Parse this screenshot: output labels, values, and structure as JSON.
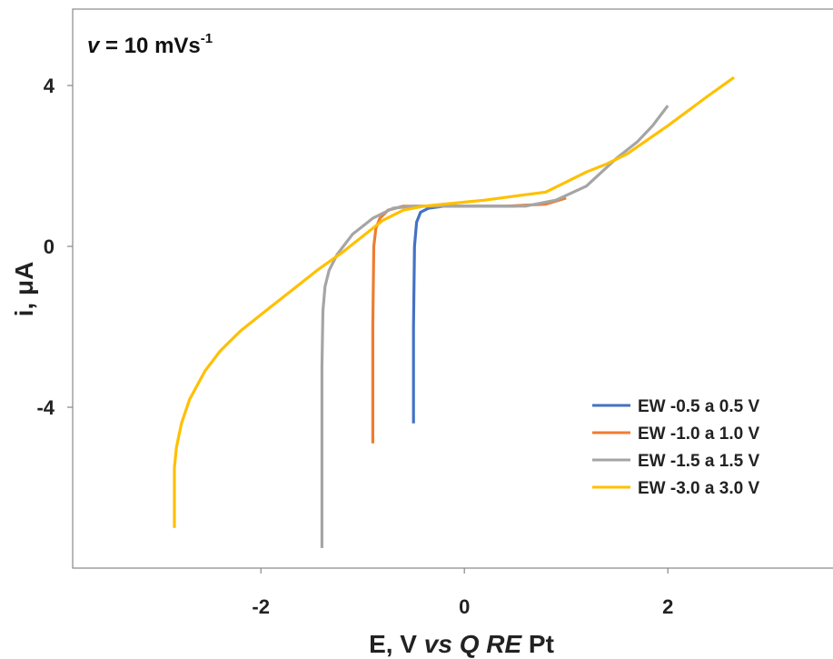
{
  "chart_data": {
    "type": "line",
    "annotation": {
      "prefix": "v",
      "middle": " = 10 mVs",
      "superscript": "-1"
    },
    "xlabel": {
      "prefix": "E, V ",
      "italic": "vs Q RE",
      "suffix": " Pt"
    },
    "ylabel": "i, μA",
    "xlim": [
      -3.85,
      3.65
    ],
    "ylim": [
      -8.0,
      5.9
    ],
    "x_ticks": [
      -2,
      0,
      2
    ],
    "x_tick_labels": [
      "-2",
      "0",
      "2"
    ],
    "y_ticks": [
      4,
      0,
      -4
    ],
    "y_tick_labels": [
      "4",
      "0",
      "-4"
    ],
    "grid": false,
    "legend_position": "bottom-right",
    "series": [
      {
        "name": "EW -0.5 a 0.5 V",
        "color": "#4472c4",
        "x": [
          -0.5,
          -0.5,
          -0.49,
          -0.47,
          -0.43,
          -0.35,
          -0.2,
          0.0,
          0.2,
          0.4,
          0.5
        ],
        "y": [
          -4.4,
          -2.0,
          0.0,
          0.6,
          0.85,
          0.95,
          1.0,
          1.0,
          1.0,
          1.0,
          1.0
        ]
      },
      {
        "name": "EW -1.0 a 1.0 V",
        "color": "#ed7d31",
        "x": [
          -0.9,
          -0.9,
          -0.89,
          -0.87,
          -0.83,
          -0.75,
          -0.6,
          -0.4,
          0.0,
          0.4,
          0.8,
          1.0
        ],
        "y": [
          -4.9,
          -2.0,
          0.0,
          0.45,
          0.7,
          0.9,
          1.0,
          1.0,
          1.0,
          1.0,
          1.05,
          1.2
        ]
      },
      {
        "name": "EW -1.5 a 1.5 V",
        "color": "#a5a5a5",
        "x": [
          -1.4,
          -1.4,
          -1.39,
          -1.37,
          -1.33,
          -1.25,
          -1.1,
          -0.9,
          -0.7,
          -0.5,
          -0.2,
          0.2,
          0.6,
          0.9,
          1.2,
          1.5,
          1.7,
          1.85,
          2.0
        ],
        "y": [
          -7.5,
          -3.0,
          -1.6,
          -1.0,
          -0.6,
          -0.2,
          0.3,
          0.7,
          0.95,
          1.0,
          1.0,
          1.0,
          1.0,
          1.15,
          1.5,
          2.2,
          2.6,
          3.0,
          3.5
        ]
      },
      {
        "name": "EW -3.0 a 3.0 V",
        "color": "#ffc000",
        "x": [
          -2.85,
          -2.85,
          -2.83,
          -2.78,
          -2.7,
          -2.55,
          -2.4,
          -2.2,
          -1.95,
          -1.7,
          -1.45,
          -1.2,
          -1.0,
          -0.8,
          -0.6,
          -0.4,
          -0.2,
          0.0,
          0.2,
          0.5,
          0.8,
          1.0,
          1.2,
          1.4,
          1.6,
          2.0,
          2.4,
          2.65
        ],
        "y": [
          -7.0,
          -5.5,
          -5.0,
          -4.4,
          -3.8,
          -3.1,
          -2.6,
          -2.1,
          -1.6,
          -1.1,
          -0.6,
          -0.15,
          0.25,
          0.65,
          0.9,
          1.0,
          1.05,
          1.1,
          1.15,
          1.25,
          1.35,
          1.6,
          1.85,
          2.05,
          2.3,
          3.0,
          3.75,
          4.2
        ]
      }
    ]
  }
}
